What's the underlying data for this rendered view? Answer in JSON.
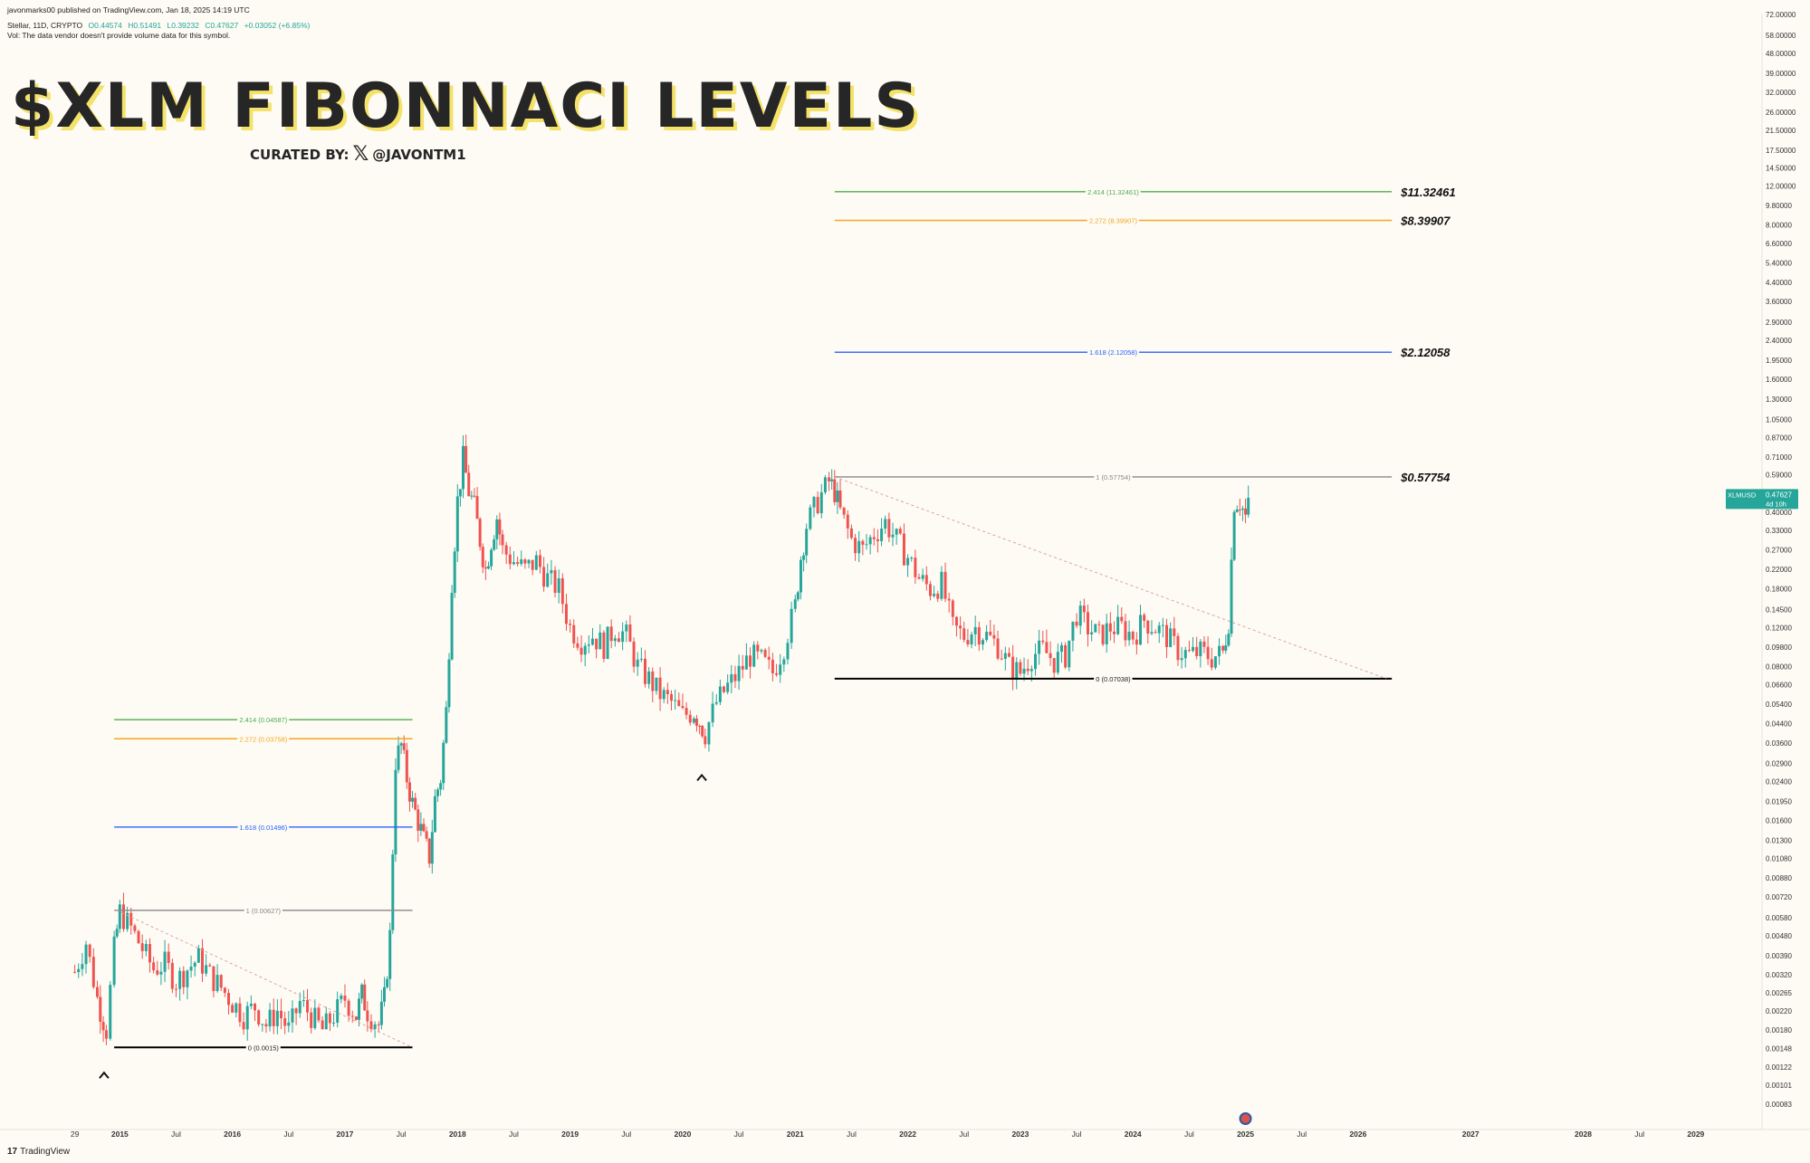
{
  "header": {
    "publisher": "javonmarks00 published on TradingView.com, Jan 18, 2025 14:19 UTC",
    "symbol_line": "Stellar, 11D, CRYPTO",
    "open": "O0.44574",
    "high": "H0.51491",
    "low": "L0.39232",
    "close": "C0.47627",
    "change": "+0.03052 (+6.85%)",
    "volume_note": "Vol: The data vendor doesn't provide volume data for this symbol."
  },
  "title": "$XLM FIBONNACI LEVELS",
  "curated": {
    "prefix": "CURATED BY:",
    "icon": "x-logo-icon",
    "handle": "@JAVONTM1"
  },
  "footer": {
    "brand": "TradingView",
    "icon": "tradingview-logo-icon"
  },
  "colors": {
    "up": "#26a69a",
    "down": "#ef5350",
    "fib_2414": "#4caf50",
    "fib_2272": "#f5a623",
    "fib_1618": "#2962ff",
    "fib_1": "#888888",
    "fib_0": "#000000",
    "price_tag": "#26a69a"
  },
  "chart_data": {
    "type": "candlestick",
    "symbol": "XLMUSD",
    "timeframe": "11D",
    "y_scale": "log",
    "ylim": [
      0.0007,
      72
    ],
    "y_ticks": [
      "72.00000",
      "58.00000",
      "48.00000",
      "39.00000",
      "32.00000",
      "26.00000",
      "21.50000",
      "17.50000",
      "14.50000",
      "12.00000",
      "9.80000",
      "8.00000",
      "6.60000",
      "5.40000",
      "4.40000",
      "3.60000",
      "2.90000",
      "2.40000",
      "1.95000",
      "1.60000",
      "1.30000",
      "1.05000",
      "0.87000",
      "0.71000",
      "0.59000",
      "0.47627",
      "0.40000",
      "0.33000",
      "0.27000",
      "0.22000",
      "0.18000",
      "0.14500",
      "0.12000",
      "0.09800",
      "0.08000",
      "0.06600",
      "0.05400",
      "0.04400",
      "0.03600",
      "0.02900",
      "0.02400",
      "0.01950",
      "0.01600",
      "0.01300",
      "0.01080",
      "0.00880",
      "0.00720",
      "0.00580",
      "0.00480",
      "0.00390",
      "0.00320",
      "0.00265",
      "0.00220",
      "0.00180",
      "0.00148",
      "0.00122",
      "0.00101",
      "0.00083"
    ],
    "x_ticks": [
      "29",
      "2015",
      "Jul",
      "2016",
      "Jul",
      "2017",
      "Jul",
      "2018",
      "Jul",
      "2019",
      "Jul",
      "2020",
      "Jul",
      "2021",
      "Jul",
      "2022",
      "Jul",
      "2023",
      "Jul",
      "2024",
      "Jul",
      "2025",
      "Jul",
      "2026",
      "2027",
      "2028",
      "Jul",
      "2029"
    ],
    "x_tick_dates": [
      2014.6,
      2015.0,
      2015.5,
      2016.0,
      2016.5,
      2017.0,
      2017.5,
      2018.0,
      2018.5,
      2019.0,
      2019.5,
      2020.0,
      2020.5,
      2021.0,
      2021.5,
      2022.0,
      2022.5,
      2023.0,
      2023.5,
      2024.0,
      2024.5,
      2025.0,
      2025.5,
      2026.0,
      2027.0,
      2028.0,
      2028.5,
      2029.0
    ],
    "price_tag": {
      "label": "XLMUSD",
      "value": "0.47627",
      "countdown": "4d 10h"
    },
    "fib_sets": [
      {
        "x_start": 2014.95,
        "x_end": 2017.6,
        "levels": [
          {
            "ratio": "2.414",
            "label": "2.414 (0.04587)",
            "value": 0.04587,
            "color": "#4caf50"
          },
          {
            "ratio": "2.272",
            "label": "2.272 (0.03758)",
            "value": 0.03758,
            "color": "#f5a623"
          },
          {
            "ratio": "1.618",
            "label": "1.618 (0.01496)",
            "value": 0.01496,
            "color": "#2962ff"
          },
          {
            "ratio": "1",
            "label": "1 (0.00627)",
            "value": 0.00627,
            "color": "#888888"
          },
          {
            "ratio": "0",
            "label": "0 (0.0015)",
            "value": 0.0015,
            "color": "#000000"
          }
        ],
        "trend_from": [
          2014.97,
          0.00627
        ],
        "trend_to": [
          2017.6,
          0.0015
        ],
        "low_marker": [
          2014.86,
          0.00112
        ]
      },
      {
        "x_start": 2021.35,
        "x_end": 2026.3,
        "levels": [
          {
            "ratio": "2.414",
            "label": "2.414 (11.32461)",
            "value": 11.32461,
            "color": "#4caf50",
            "callout": "$11.32461"
          },
          {
            "ratio": "2.272",
            "label": "2.272 (8.39907)",
            "value": 8.39907,
            "color": "#f5a623",
            "callout": "$8.39907"
          },
          {
            "ratio": "1.618",
            "label": "1.618 (2.12058)",
            "value": 2.12058,
            "color": "#2962ff",
            "callout": "$2.12058"
          },
          {
            "ratio": "1",
            "label": "1 (0.57754)",
            "value": 0.57754,
            "color": "#888888",
            "callout": "$0.57754"
          },
          {
            "ratio": "0",
            "label": "0 (0.07038)",
            "value": 0.07038,
            "color": "#000000"
          }
        ],
        "trend_from": [
          2021.35,
          0.57754
        ],
        "trend_to": [
          2026.25,
          0.07038
        ],
        "low_marker": [
          2020.17,
          0.025
        ]
      }
    ],
    "candles_path": [
      [
        2014.6,
        0.0033
      ],
      [
        2014.7,
        0.0045
      ],
      [
        2014.8,
        0.0025
      ],
      [
        2014.88,
        0.0018
      ],
      [
        2014.95,
        0.0042
      ],
      [
        2015.0,
        0.0062
      ],
      [
        2015.1,
        0.0052
      ],
      [
        2015.2,
        0.0042
      ],
      [
        2015.3,
        0.0034
      ],
      [
        2015.4,
        0.0036
      ],
      [
        2015.5,
        0.003
      ],
      [
        2015.6,
        0.0034
      ],
      [
        2015.7,
        0.0038
      ],
      [
        2015.8,
        0.0032
      ],
      [
        2015.9,
        0.0028
      ],
      [
        2016.0,
        0.0024
      ],
      [
        2016.1,
        0.0021
      ],
      [
        2016.2,
        0.0023
      ],
      [
        2016.3,
        0.0019
      ],
      [
        2016.4,
        0.0022
      ],
      [
        2016.5,
        0.0018
      ],
      [
        2016.6,
        0.0024
      ],
      [
        2016.7,
        0.0021
      ],
      [
        2016.8,
        0.0018
      ],
      [
        2016.9,
        0.0021
      ],
      [
        2017.0,
        0.0025
      ],
      [
        2017.1,
        0.0021
      ],
      [
        2017.15,
        0.0026
      ],
      [
        2017.2,
        0.0022
      ],
      [
        2017.3,
        0.0019
      ],
      [
        2017.35,
        0.0025
      ],
      [
        2017.4,
        0.0048
      ],
      [
        2017.45,
        0.03
      ],
      [
        2017.5,
        0.035
      ],
      [
        2017.55,
        0.025
      ],
      [
        2017.6,
        0.019
      ],
      [
        2017.65,
        0.016
      ],
      [
        2017.7,
        0.013
      ],
      [
        2017.75,
        0.011
      ],
      [
        2017.8,
        0.02
      ],
      [
        2017.85,
        0.025
      ],
      [
        2017.9,
        0.05
      ],
      [
        2017.95,
        0.2
      ],
      [
        2018.0,
        0.45
      ],
      [
        2018.05,
        0.7
      ],
      [
        2018.1,
        0.5
      ],
      [
        2018.15,
        0.42
      ],
      [
        2018.2,
        0.3
      ],
      [
        2018.25,
        0.22
      ],
      [
        2018.3,
        0.3
      ],
      [
        2018.35,
        0.38
      ],
      [
        2018.4,
        0.27
      ],
      [
        2018.5,
        0.24
      ],
      [
        2018.6,
        0.22
      ],
      [
        2018.7,
        0.24
      ],
      [
        2018.8,
        0.2
      ],
      [
        2018.9,
        0.18
      ],
      [
        2019.0,
        0.12
      ],
      [
        2019.1,
        0.105
      ],
      [
        2019.2,
        0.11
      ],
      [
        2019.3,
        0.1
      ],
      [
        2019.4,
        0.12
      ],
      [
        2019.5,
        0.11
      ],
      [
        2019.6,
        0.08
      ],
      [
        2019.7,
        0.07
      ],
      [
        2019.8,
        0.06
      ],
      [
        2019.9,
        0.055
      ],
      [
        2020.0,
        0.048
      ],
      [
        2020.1,
        0.05
      ],
      [
        2020.15,
        0.045
      ],
      [
        2020.2,
        0.04
      ],
      [
        2020.3,
        0.055
      ],
      [
        2020.4,
        0.065
      ],
      [
        2020.5,
        0.075
      ],
      [
        2020.6,
        0.09
      ],
      [
        2020.7,
        0.085
      ],
      [
        2020.8,
        0.075
      ],
      [
        2020.9,
        0.1
      ],
      [
        2021.0,
        0.15
      ],
      [
        2021.05,
        0.25
      ],
      [
        2021.1,
        0.35
      ],
      [
        2021.2,
        0.45
      ],
      [
        2021.3,
        0.55
      ],
      [
        2021.35,
        0.5
      ],
      [
        2021.4,
        0.4
      ],
      [
        2021.5,
        0.3
      ],
      [
        2021.6,
        0.27
      ],
      [
        2021.7,
        0.32
      ],
      [
        2021.8,
        0.36
      ],
      [
        2021.9,
        0.3
      ],
      [
        2022.0,
        0.25
      ],
      [
        2022.1,
        0.2
      ],
      [
        2022.2,
        0.18
      ],
      [
        2022.3,
        0.19
      ],
      [
        2022.4,
        0.12
      ],
      [
        2022.5,
        0.11
      ],
      [
        2022.6,
        0.12
      ],
      [
        2022.7,
        0.11
      ],
      [
        2022.8,
        0.1
      ],
      [
        2022.9,
        0.08
      ],
      [
        2023.0,
        0.075
      ],
      [
        2023.1,
        0.09
      ],
      [
        2023.2,
        0.095
      ],
      [
        2023.3,
        0.085
      ],
      [
        2023.4,
        0.09
      ],
      [
        2023.5,
        0.14
      ],
      [
        2023.6,
        0.12
      ],
      [
        2023.7,
        0.11
      ],
      [
        2023.8,
        0.12
      ],
      [
        2023.9,
        0.12
      ],
      [
        2024.0,
        0.11
      ],
      [
        2024.1,
        0.13
      ],
      [
        2024.2,
        0.12
      ],
      [
        2024.3,
        0.11
      ],
      [
        2024.4,
        0.095
      ],
      [
        2024.5,
        0.09
      ],
      [
        2024.6,
        0.093
      ],
      [
        2024.7,
        0.088
      ],
      [
        2024.8,
        0.092
      ],
      [
        2024.85,
        0.13
      ],
      [
        2024.9,
        0.45
      ],
      [
        2024.95,
        0.45
      ],
      [
        2025.0,
        0.38
      ],
      [
        2025.05,
        0.47627
      ]
    ]
  }
}
